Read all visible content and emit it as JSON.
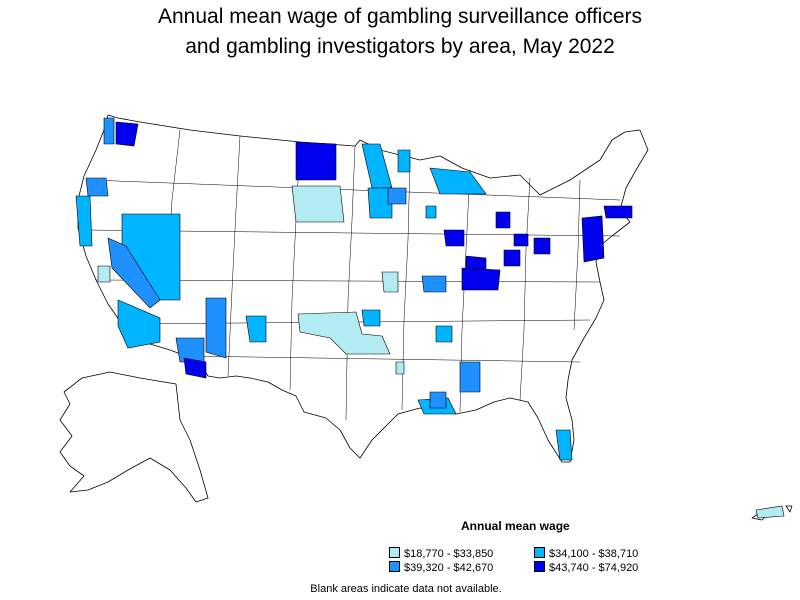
{
  "title_line1": "Annual mean wage of gambling surveillance officers",
  "title_line2": "and gambling investigators by area, May 2022",
  "legend": {
    "title": "Annual mean wage",
    "items": [
      {
        "label": "$18,770 - $33,850",
        "color": "#b2ebf2"
      },
      {
        "label": "$34,100 - $38,710",
        "color": "#00b4ff"
      },
      {
        "label": "$39,320 - $42,670",
        "color": "#1e90ff"
      },
      {
        "label": "$43,740 - $74,920",
        "color": "#0000ee"
      }
    ]
  },
  "footnote": "Blank areas indicate data not available.",
  "colors": {
    "outline": "#000000",
    "no_data": "#ffffff"
  }
}
